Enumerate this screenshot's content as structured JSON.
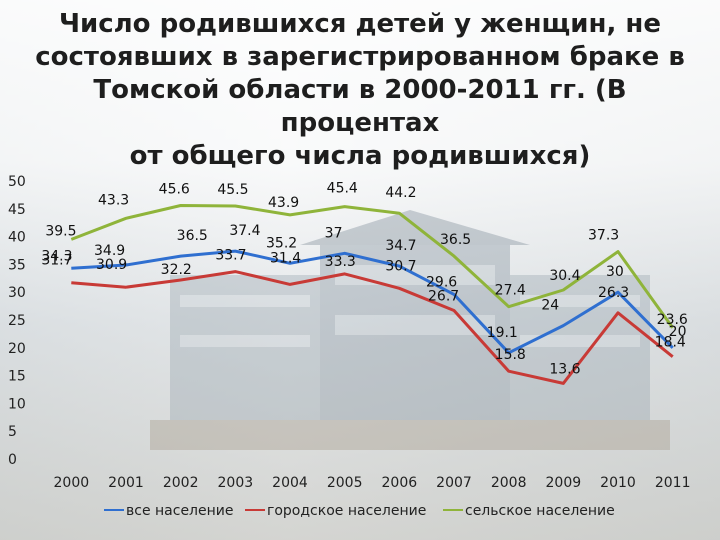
{
  "title": "Число родившихся детей у женщин, не\nсостоявших в зарегистрированном браке в\nТомской области в 2000-2011 гг. (В процентах\nот общего числа родившихся)",
  "chart_data": {
    "type": "line",
    "title": "Число родившихся детей у женщин, не состоявших в зарегистрированном браке в Томской области в 2000-2011 гг. (В процентах от общего числа родившихся)",
    "categories": [
      "2000",
      "2001",
      "2002",
      "2003",
      "2004",
      "2005",
      "2006",
      "2007",
      "2008",
      "2009",
      "2010",
      "2011"
    ],
    "ylim": [
      0,
      50
    ],
    "yticks": [
      "0",
      "5",
      "10",
      "15",
      "20",
      "25",
      "30",
      "35",
      "40",
      "45",
      "50"
    ],
    "grid": false,
    "legend": "bottom",
    "series": [
      {
        "name": "все население",
        "color": "#2f6fd0",
        "values": [
          34.3,
          34.9,
          36.5,
          37.4,
          35.2,
          37,
          34.7,
          29.6,
          19.1,
          24,
          30,
          20
        ],
        "labels": [
          "34.3",
          "34.9",
          "36.5",
          "37.4",
          "35.2",
          "37",
          "34.7",
          "29.6",
          "19.1",
          "24",
          "30",
          "20"
        ]
      },
      {
        "name": "городское население",
        "color": "#c83a36",
        "values": [
          31.7,
          30.9,
          32.2,
          33.7,
          31.4,
          33.3,
          30.7,
          26.7,
          15.8,
          13.6,
          26.3,
          18.4
        ],
        "labels": [
          "31.7",
          "30.9",
          "32.2",
          "33.7",
          "31.4",
          "33.3",
          "30.7",
          "26.7",
          "15.8",
          "13.6",
          "26.3",
          "18.4"
        ]
      },
      {
        "name": "сельское население",
        "color": "#8fb43a",
        "values": [
          39.5,
          43.3,
          45.6,
          45.5,
          43.9,
          45.4,
          44.2,
          36.5,
          27.4,
          30.4,
          37.3,
          23.6
        ],
        "labels": [
          "39.5",
          "43.3",
          "45.6",
          "45.5",
          "43.9",
          "45.4",
          "44.2",
          "36.5",
          "27.4",
          "30.4",
          "37.3",
          "23.6"
        ]
      }
    ]
  }
}
